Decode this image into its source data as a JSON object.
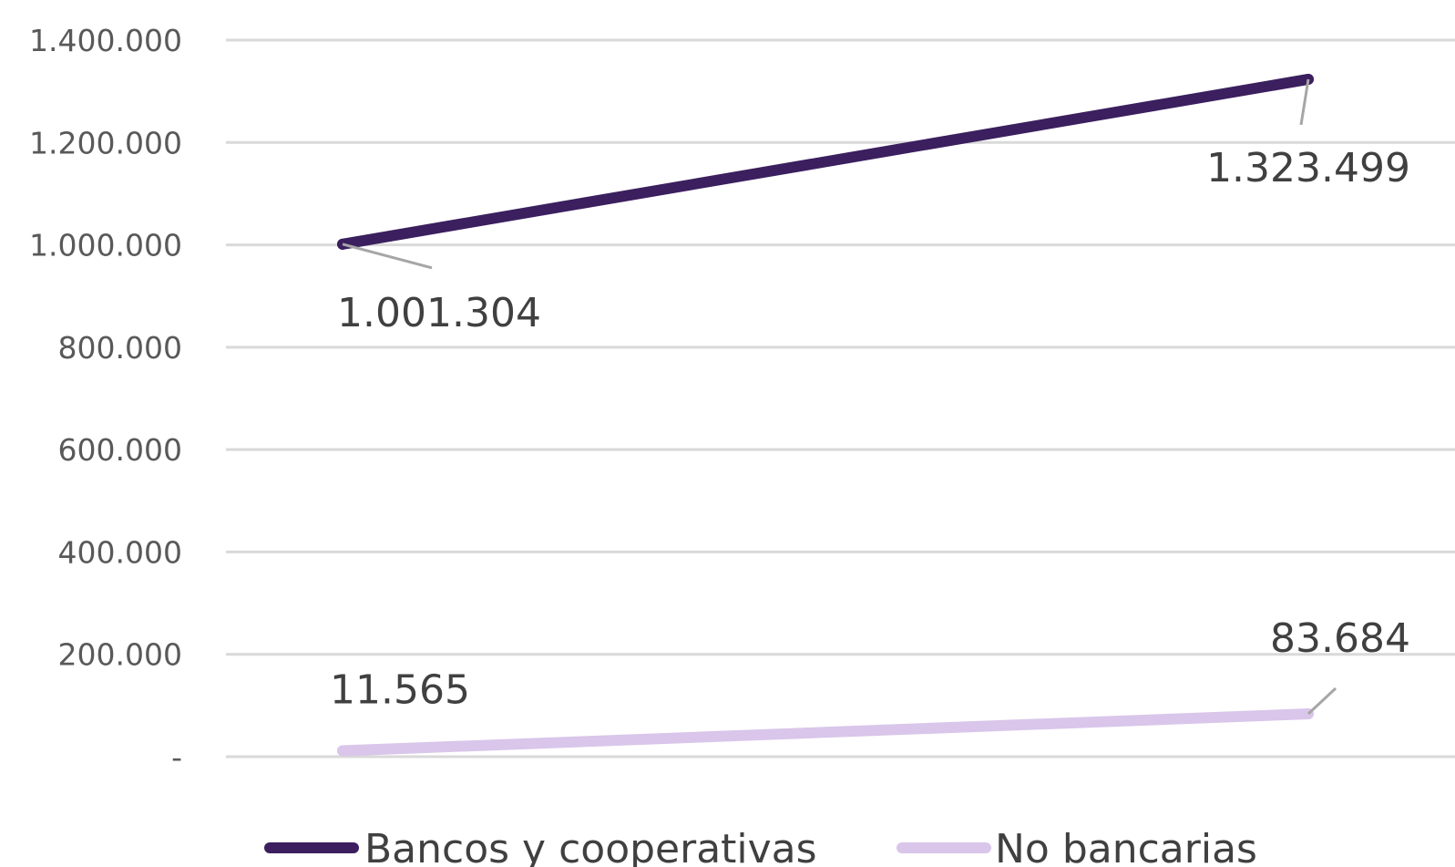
{
  "chart_data": {
    "type": "line",
    "title": "",
    "xlabel": "",
    "ylabel": "",
    "x": [
      "",
      ""
    ],
    "ylim": [
      0,
      1400000
    ],
    "yticks": [
      {
        "value": 0,
        "label": "-"
      },
      {
        "value": 200000,
        "label": "200.000"
      },
      {
        "value": 400000,
        "label": "400.000"
      },
      {
        "value": 600000,
        "label": "600.000"
      },
      {
        "value": 800000,
        "label": "800.000"
      },
      {
        "value": 1000000,
        "label": "1.000.000"
      },
      {
        "value": 1200000,
        "label": "1.200.000"
      },
      {
        "value": 1400000,
        "label": "1.400.000"
      }
    ],
    "grid": true,
    "legend_position": "bottom",
    "series": [
      {
        "name": "Bancos y cooperativas",
        "color": "#3b1f5e",
        "values": [
          1001304,
          1323499
        ],
        "labels": [
          "1.001.304",
          "1.323.499"
        ]
      },
      {
        "name": "No bancarias",
        "color": "#d9c6ea",
        "values": [
          11565,
          83684
        ],
        "labels": [
          "11.565",
          "83.684"
        ]
      }
    ]
  }
}
